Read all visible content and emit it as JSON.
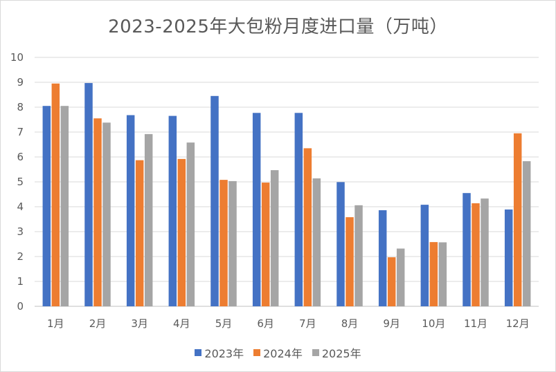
{
  "chart_data": {
    "type": "bar",
    "title": "2023-2025年大包粉月度进口量（万吨）",
    "categories": [
      "1月",
      "2月",
      "3月",
      "4月",
      "5月",
      "6月",
      "7月",
      "8月",
      "9月",
      "10月",
      "11月",
      "12月"
    ],
    "series": [
      {
        "name": "2023年",
        "color": "#4472c4",
        "values": [
          8.05,
          8.97,
          7.68,
          7.65,
          8.45,
          7.77,
          7.77,
          4.99,
          3.86,
          4.08,
          4.55,
          3.89
        ]
      },
      {
        "name": "2024年",
        "color": "#ed7d31",
        "values": [
          8.95,
          7.55,
          5.87,
          5.92,
          5.08,
          4.97,
          6.35,
          3.58,
          1.97,
          2.58,
          4.14,
          6.95
        ]
      },
      {
        "name": "2025年",
        "color": "#a5a5a5",
        "values": [
          8.05,
          7.38,
          6.92,
          6.58,
          5.03,
          5.47,
          5.14,
          4.06,
          2.32,
          2.57,
          4.33,
          5.83
        ]
      }
    ],
    "yticks": [
      0,
      1,
      2,
      3,
      4,
      5,
      6,
      7,
      8,
      9,
      10
    ],
    "ylim": [
      0,
      10
    ],
    "grid": true,
    "legend_position": "bottom"
  }
}
